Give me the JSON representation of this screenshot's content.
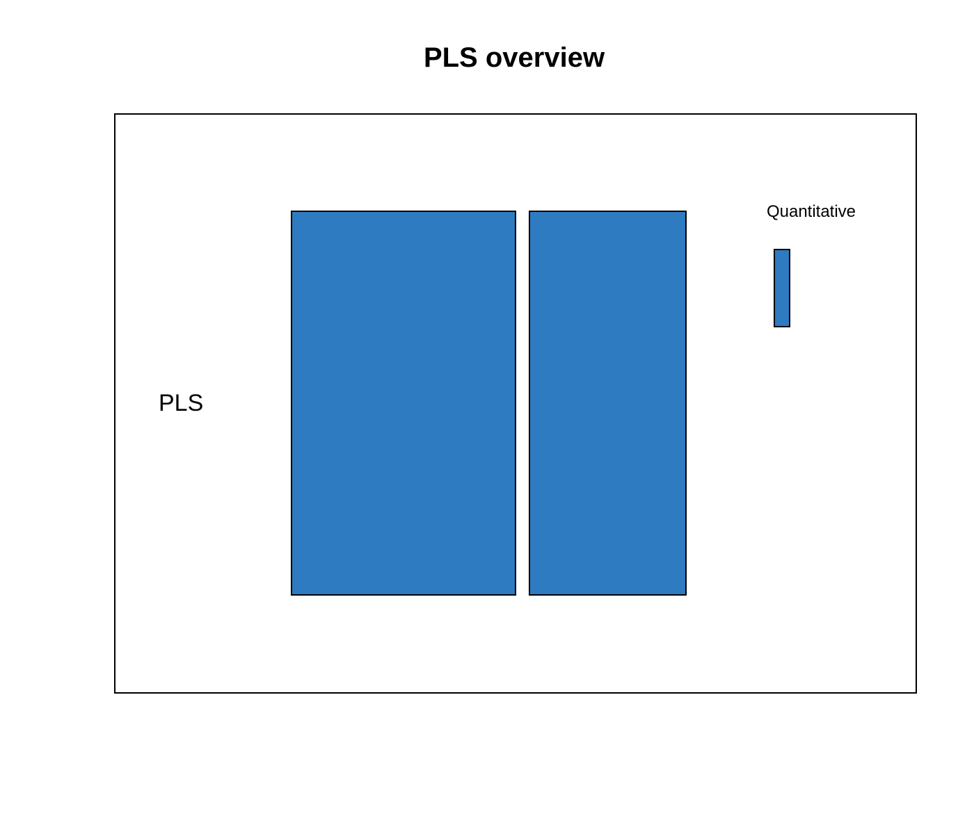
{
  "title": "PLS overview",
  "row_label": "PLS",
  "column_label": "Quantitative",
  "colors": {
    "block_fill": "#2e7bc1",
    "outline": "#000000",
    "background": "#ffffff"
  }
}
